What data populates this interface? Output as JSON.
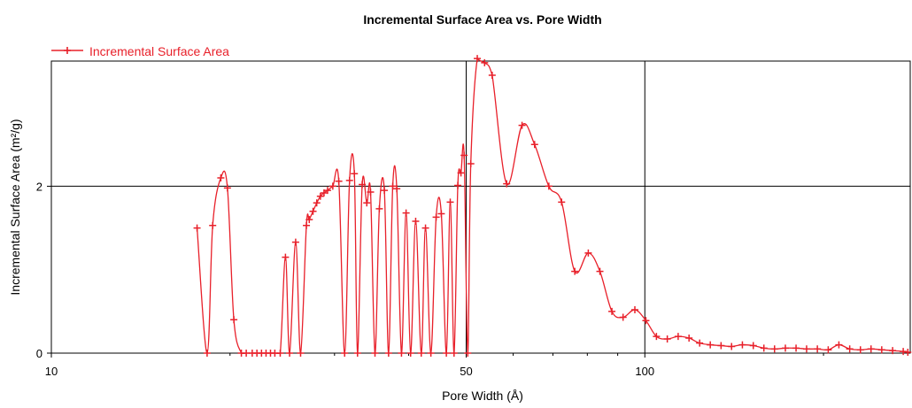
{
  "chart_data": {
    "type": "line",
    "title": "Incremental Surface Area vs. Pore Width",
    "xlabel": "Pore Width (Å)",
    "ylabel": "Incremental Surface Area (m²/g)",
    "x_scale": "log",
    "xlim": [
      10,
      280
    ],
    "ylim": [
      0,
      3.5
    ],
    "x_ticks": [
      10,
      50,
      100
    ],
    "x_tick_labels": [
      "10",
      "50",
      "100"
    ],
    "y_ticks": [
      0,
      2
    ],
    "y_tick_labels": [
      "0",
      "2"
    ],
    "grid": true,
    "legend_position": "top-left",
    "series": [
      {
        "name": "Incremental Surface Area",
        "color": "#e8202a",
        "marker": "cross",
        "x": [
          17.6,
          18.3,
          18.7,
          19.3,
          19.8,
          20.3,
          20.9,
          21.3,
          21.8,
          22.2,
          22.6,
          23.0,
          23.4,
          23.8,
          24.3,
          24.8,
          25.2,
          25.8,
          26.3,
          26.9,
          27.2,
          27.6,
          28.0,
          28.4,
          28.8,
          29.2,
          29.8,
          30.5,
          31.2,
          31.8,
          32.4,
          32.8,
          33.4,
          34.0,
          34.5,
          35.1,
          35.7,
          36.4,
          37.0,
          37.6,
          38.2,
          38.9,
          39.6,
          40.3,
          41.1,
          42.0,
          42.7,
          43.6,
          44.5,
          45.4,
          46.3,
          47.0,
          47.7,
          48.4,
          49.0,
          49.6,
          50.3,
          50.9,
          52.2,
          53.7,
          55.3,
          58.5,
          62.1,
          65.2,
          68.9,
          72.4,
          76.2,
          80.3,
          84.0,
          88.0,
          91.9,
          96.2,
          100.4,
          104.6,
          109.1,
          113.8,
          118.7,
          123.7,
          128.9,
          134.4,
          140.0,
          146.0,
          152.3,
          158.7,
          165.4,
          172.5,
          179.8,
          187.3,
          195.3,
          203.7,
          212.3,
          221.4,
          230.8,
          240.5,
          250.7,
          261.5,
          272.5,
          277.4
        ],
        "y": [
          1.5,
          0.0,
          1.53,
          2.1,
          1.98,
          0.4,
          0.0,
          0.0,
          0.0,
          0.0,
          0.0,
          0.0,
          0.0,
          0.0,
          0.0,
          1.15,
          0.0,
          1.33,
          0.0,
          1.53,
          1.6,
          1.7,
          1.8,
          1.88,
          1.92,
          1.95,
          2.0,
          2.06,
          0.0,
          2.07,
          2.15,
          0.0,
          2.02,
          1.8,
          1.93,
          0.0,
          1.73,
          1.95,
          0.0,
          2.0,
          1.97,
          0.0,
          1.68,
          0.0,
          1.58,
          0.0,
          1.5,
          0.0,
          1.63,
          1.67,
          0.0,
          1.81,
          0.0,
          2.01,
          2.16,
          2.37,
          0.0,
          2.27,
          3.53,
          3.48,
          3.33,
          2.03,
          2.73,
          2.5,
          2.0,
          1.81,
          0.98,
          1.2,
          0.98,
          0.5,
          0.43,
          0.52,
          0.39,
          0.2,
          0.17,
          0.2,
          0.18,
          0.12,
          0.1,
          0.09,
          0.08,
          0.1,
          0.09,
          0.06,
          0.05,
          0.06,
          0.06,
          0.05,
          0.05,
          0.04,
          0.1,
          0.05,
          0.04,
          0.05,
          0.04,
          0.03,
          0.02,
          0.01
        ]
      }
    ]
  }
}
